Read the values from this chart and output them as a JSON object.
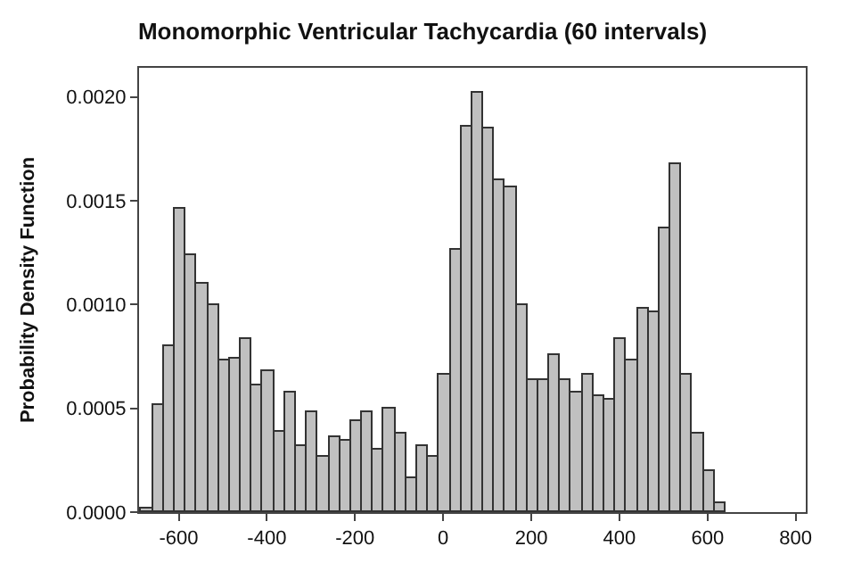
{
  "chart_data": {
    "type": "histogram",
    "title": "Monomorphic Ventricular Tachycardia (60 intervals)",
    "ylabel": "Probability Density Function",
    "bins": [
      -684,
      -659,
      -634,
      -609,
      -584,
      -559,
      -534,
      -509,
      -484,
      -459,
      -434,
      -409,
      -384,
      -359,
      -334,
      -309,
      -284,
      -259,
      -234,
      -209,
      -184,
      -159,
      -134,
      -109,
      -84,
      -59,
      -34,
      -9,
      16,
      41,
      66,
      91,
      116,
      141,
      166,
      191,
      216,
      241,
      266,
      291,
      316,
      341,
      366,
      391,
      416,
      441,
      466,
      491,
      516,
      541,
      566,
      591,
      616,
      641
    ],
    "values": [
      2e-05,
      0.00052,
      0.0008,
      0.00146,
      0.00124,
      0.0011,
      0.001,
      0.00073,
      0.00074,
      0.00083,
      0.00061,
      0.00068,
      0.00039,
      0.00058,
      0.00032,
      0.00048,
      0.00027,
      0.00036,
      0.00034,
      0.00044,
      0.00048,
      0.0003,
      0.0005,
      0.00038,
      0.00016,
      0.00032,
      0.00027,
      0.00066,
      0.00126,
      0.00186,
      0.00202,
      0.00185,
      0.0016,
      0.00156,
      0.001,
      0.00064,
      0.00064,
      0.00076,
      0.00064,
      0.00058,
      0.00066,
      0.00056,
      0.00054,
      0.00083,
      0.00073,
      0.00098,
      0.00096,
      0.00137,
      0.00168,
      0.00066,
      0.00038,
      0.0002,
      4e-05
    ],
    "color": "#c0c0c0",
    "xlim": [
      -690,
      823
    ],
    "ylim": [
      0,
      0.00214
    ],
    "yticks": [
      {
        "value": 0,
        "label": "0.0000"
      },
      {
        "value": 0.0005,
        "label": "0.0005"
      },
      {
        "value": 0.001,
        "label": "0.0010"
      },
      {
        "value": 0.0015,
        "label": "0.0015"
      },
      {
        "value": 0.002,
        "label": "0.0020"
      }
    ],
    "xticks": [
      -600,
      -400,
      -200,
      0,
      200,
      400,
      600,
      800
    ]
  }
}
